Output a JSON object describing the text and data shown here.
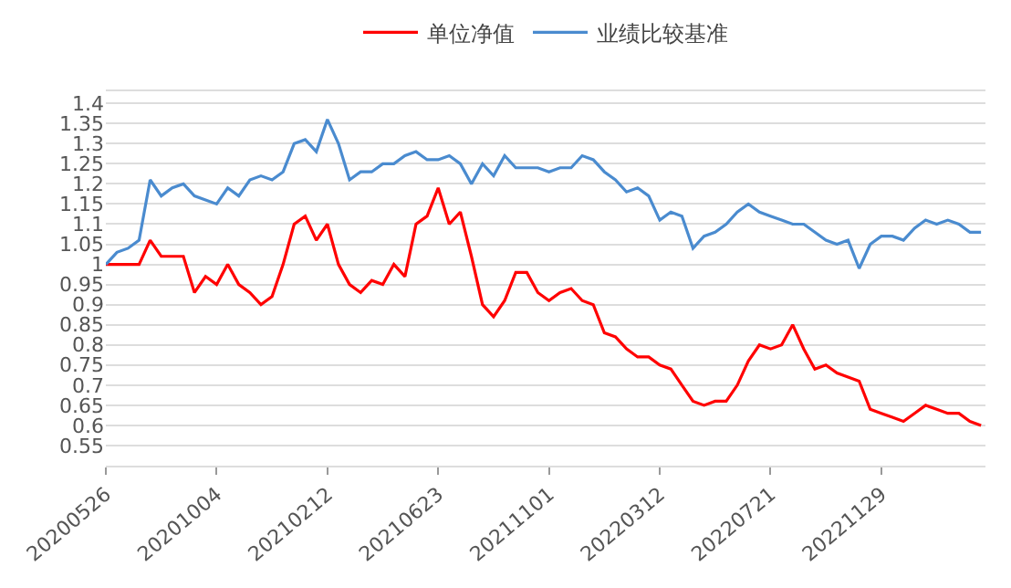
{
  "chart_data": {
    "type": "line",
    "categories": [
      "20200526",
      null,
      null,
      null,
      null,
      null,
      null,
      null,
      null,
      null,
      "20201004",
      null,
      null,
      null,
      null,
      null,
      null,
      null,
      null,
      null,
      "20210212",
      null,
      null,
      null,
      null,
      null,
      null,
      null,
      null,
      null,
      "20210623",
      null,
      null,
      null,
      null,
      null,
      null,
      null,
      null,
      null,
      "20211101",
      null,
      null,
      null,
      null,
      null,
      null,
      null,
      null,
      null,
      "20220312",
      null,
      null,
      null,
      null,
      null,
      null,
      null,
      null,
      null,
      "20220721",
      null,
      null,
      null,
      null,
      null,
      null,
      null,
      null,
      null,
      "20221129",
      null,
      null,
      null,
      null,
      null,
      null,
      null,
      null,
      null
    ],
    "series": [
      {
        "name": "单位净值",
        "color": "#ff0000",
        "values": [
          1.0,
          1.0,
          1.0,
          1.0,
          1.06,
          1.02,
          1.02,
          1.02,
          0.93,
          0.97,
          0.95,
          1.0,
          0.95,
          0.93,
          0.9,
          0.92,
          1.0,
          1.1,
          1.12,
          1.06,
          1.1,
          1.0,
          0.95,
          0.93,
          0.96,
          0.95,
          1.0,
          0.97,
          1.1,
          1.12,
          1.19,
          1.1,
          1.13,
          1.02,
          0.9,
          0.87,
          0.91,
          0.98,
          0.98,
          0.93,
          0.91,
          0.93,
          0.94,
          0.91,
          0.9,
          0.83,
          0.82,
          0.79,
          0.77,
          0.77,
          0.75,
          0.74,
          0.7,
          0.66,
          0.65,
          0.66,
          0.66,
          0.7,
          0.76,
          0.8,
          0.79,
          0.8,
          0.85,
          0.79,
          0.74,
          0.75,
          0.73,
          0.72,
          0.71,
          0.64,
          0.63,
          0.62,
          0.61,
          0.63,
          0.65,
          0.64,
          0.63,
          0.63,
          0.61,
          0.6
        ]
      },
      {
        "name": "业绩比较基准",
        "color": "#4a8bcf",
        "values": [
          1.0,
          1.03,
          1.04,
          1.06,
          1.21,
          1.17,
          1.19,
          1.2,
          1.17,
          1.16,
          1.15,
          1.19,
          1.17,
          1.21,
          1.22,
          1.21,
          1.23,
          1.3,
          1.31,
          1.28,
          1.36,
          1.3,
          1.21,
          1.23,
          1.23,
          1.25,
          1.25,
          1.27,
          1.28,
          1.26,
          1.26,
          1.27,
          1.25,
          1.2,
          1.25,
          1.22,
          1.27,
          1.24,
          1.24,
          1.24,
          1.23,
          1.24,
          1.24,
          1.27,
          1.26,
          1.23,
          1.21,
          1.18,
          1.19,
          1.17,
          1.11,
          1.13,
          1.12,
          1.04,
          1.07,
          1.08,
          1.1,
          1.13,
          1.15,
          1.13,
          1.12,
          1.11,
          1.1,
          1.1,
          1.08,
          1.06,
          1.05,
          1.06,
          0.99,
          1.05,
          1.07,
          1.07,
          1.06,
          1.09,
          1.11,
          1.1,
          1.11,
          1.1,
          1.08,
          1.08
        ]
      }
    ],
    "ylim": [
      0.5,
      1.43
    ],
    "yticks": [
      0.55,
      0.6,
      0.65,
      0.7,
      0.75,
      0.8,
      0.85,
      0.9,
      0.95,
      1,
      1.05,
      1.1,
      1.15,
      1.2,
      1.25,
      1.3,
      1.35,
      1.4
    ],
    "grid": "y",
    "legend": "top",
    "marker": "none",
    "line_style": "solid"
  }
}
